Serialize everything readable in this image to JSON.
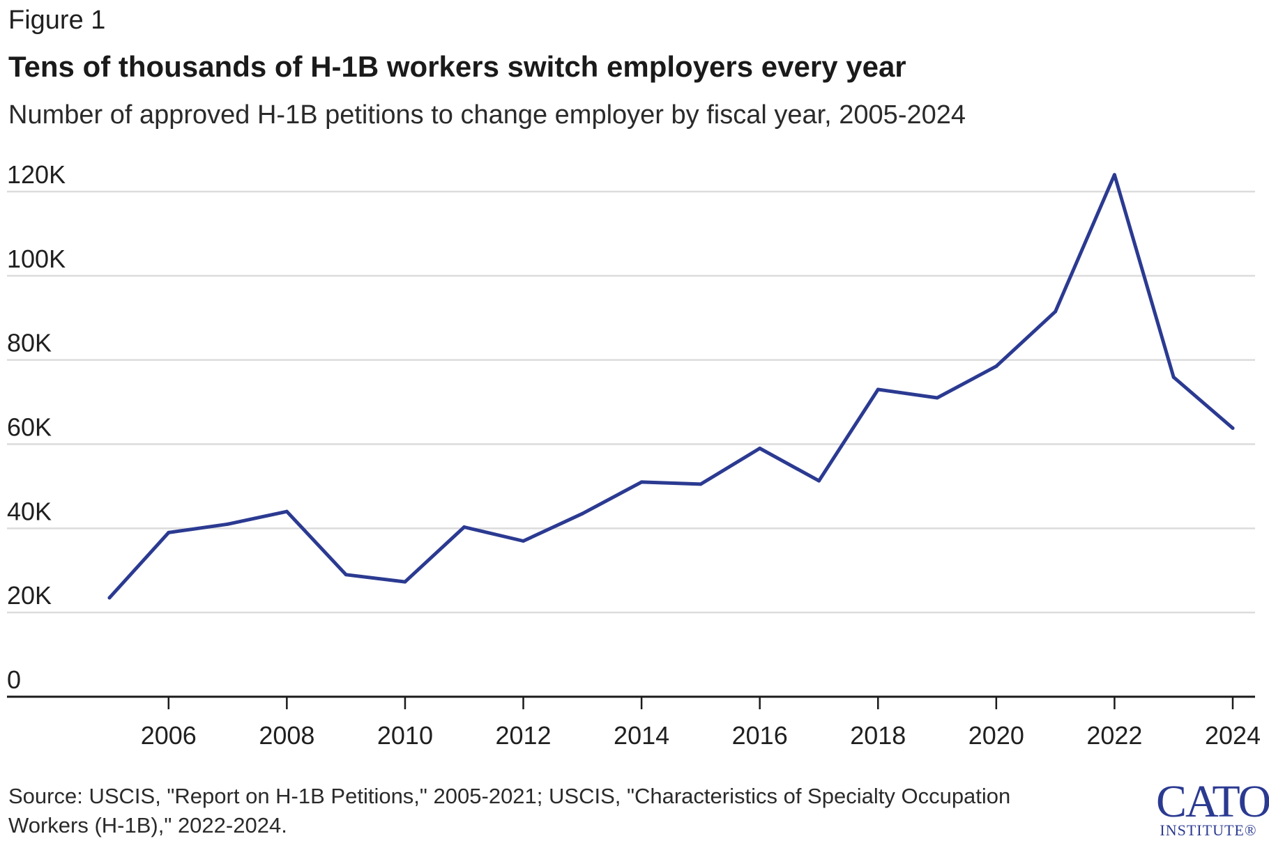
{
  "figure_label": "Figure 1",
  "title": "Tens of thousands of H-1B workers switch employers every year",
  "subtitle": "Number of approved H-1B petitions to change employer by fiscal year, 2005-2024",
  "source": "Source: USCIS, \"Report on H-1B Petitions,\" 2005-2021; USCIS, \"Characteristics of Specialty Occupation Workers (H-1B),\" 2022-2024.",
  "logo": {
    "main": "CATO",
    "sub": "INSTITUTE",
    "mark": "®"
  },
  "colors": {
    "line": "#2b3a91",
    "grid": "#dcdcdc",
    "axis": "#1a1a1a",
    "text": "#1f1f1f"
  },
  "chart_data": {
    "type": "line",
    "title": "Tens of thousands of H-1B workers switch employers every year",
    "xlabel": "",
    "ylabel": "",
    "x": [
      2005,
      2006,
      2007,
      2008,
      2009,
      2010,
      2011,
      2012,
      2013,
      2014,
      2015,
      2016,
      2017,
      2018,
      2019,
      2020,
      2021,
      2022,
      2023,
      2024
    ],
    "series": [
      {
        "name": "Approved H-1B petitions to change employer",
        "values": [
          23500,
          39000,
          41000,
          44000,
          29000,
          27300,
          40300,
          37000,
          43500,
          51000,
          50500,
          59000,
          51300,
          73000,
          71000,
          78500,
          91500,
          124000,
          75900,
          63800
        ]
      }
    ],
    "xlim": [
      2004,
      2024.4
    ],
    "ylim": [
      0,
      124000
    ],
    "x_ticks": [
      2006,
      2008,
      2010,
      2012,
      2014,
      2016,
      2018,
      2020,
      2022,
      2024
    ],
    "x_tick_labels": [
      "2006",
      "2008",
      "2010",
      "2012",
      "2014",
      "2016",
      "2018",
      "2020",
      "2022",
      "2024"
    ],
    "y_ticks": [
      0,
      20000,
      40000,
      60000,
      80000,
      100000,
      120000
    ],
    "y_tick_labels": [
      "0",
      "20K",
      "40K",
      "60K",
      "80K",
      "100K",
      "120K"
    ],
    "grid": true,
    "legend": "none"
  }
}
